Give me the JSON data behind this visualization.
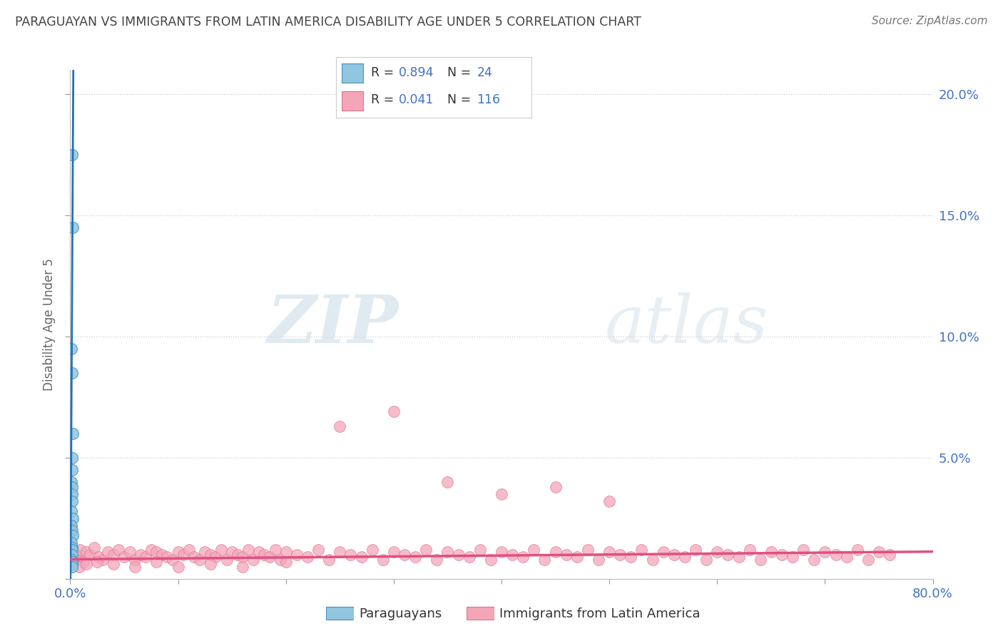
{
  "title": "PARAGUAYAN VS IMMIGRANTS FROM LATIN AMERICA DISABILITY AGE UNDER 5 CORRELATION CHART",
  "source": "Source: ZipAtlas.com",
  "ylabel": "Disability Age Under 5",
  "xlim": [
    0.0,
    0.8
  ],
  "ylim": [
    0.0,
    0.21
  ],
  "ytick_positions": [
    0.0,
    0.05,
    0.1,
    0.15,
    0.2
  ],
  "ytick_labels": [
    "",
    "5.0%",
    "10.0%",
    "15.0%",
    "20.0%"
  ],
  "xtick_positions": [
    0.0,
    0.1,
    0.2,
    0.3,
    0.4,
    0.5,
    0.6,
    0.7,
    0.8
  ],
  "xtick_labels": [
    "0.0%",
    "",
    "",
    "",
    "",
    "",
    "",
    "",
    "80.0%"
  ],
  "blue_R": 0.894,
  "blue_N": 24,
  "pink_R": 0.041,
  "pink_N": 116,
  "blue_color": "#92c5de",
  "pink_color": "#f4a6b8",
  "blue_line_color": "#2171b5",
  "pink_line_color": "#e05080",
  "blue_edge_color": "#4393c3",
  "pink_edge_color": "#e07090",
  "legend_label_blue": "Paraguayans",
  "legend_label_pink": "Immigrants from Latin America",
  "watermark_zip": "ZIP",
  "watermark_atlas": "atlas",
  "background_color": "#ffffff",
  "title_color": "#444444",
  "axis_label_color": "#4472c4",
  "blue_scatter_x": [
    0.0015,
    0.0022,
    0.0012,
    0.0018,
    0.0025,
    0.002,
    0.0016,
    0.001,
    0.0014,
    0.0019,
    0.0017,
    0.0013,
    0.0021,
    0.0011,
    0.0016,
    0.0023,
    0.0009,
    0.0015,
    0.002,
    0.0018,
    0.0012,
    0.0017,
    0.0014,
    0.0019
  ],
  "blue_scatter_y": [
    0.175,
    0.145,
    0.095,
    0.085,
    0.06,
    0.05,
    0.045,
    0.04,
    0.038,
    0.035,
    0.032,
    0.028,
    0.025,
    0.022,
    0.02,
    0.018,
    0.015,
    0.013,
    0.012,
    0.01,
    0.008,
    0.007,
    0.006,
    0.005
  ],
  "pink_scatter_x": [
    0.003,
    0.005,
    0.007,
    0.009,
    0.012,
    0.015,
    0.018,
    0.022,
    0.026,
    0.03,
    0.035,
    0.04,
    0.045,
    0.05,
    0.055,
    0.06,
    0.065,
    0.07,
    0.075,
    0.08,
    0.085,
    0.09,
    0.095,
    0.1,
    0.105,
    0.11,
    0.115,
    0.12,
    0.125,
    0.13,
    0.135,
    0.14,
    0.145,
    0.15,
    0.155,
    0.16,
    0.165,
    0.17,
    0.175,
    0.18,
    0.185,
    0.19,
    0.195,
    0.2,
    0.21,
    0.22,
    0.23,
    0.24,
    0.25,
    0.26,
    0.27,
    0.28,
    0.29,
    0.3,
    0.31,
    0.32,
    0.33,
    0.34,
    0.35,
    0.36,
    0.37,
    0.38,
    0.39,
    0.4,
    0.41,
    0.42,
    0.43,
    0.44,
    0.45,
    0.46,
    0.47,
    0.48,
    0.49,
    0.5,
    0.51,
    0.52,
    0.53,
    0.54,
    0.55,
    0.56,
    0.57,
    0.58,
    0.59,
    0.6,
    0.61,
    0.62,
    0.63,
    0.64,
    0.65,
    0.66,
    0.67,
    0.68,
    0.69,
    0.7,
    0.71,
    0.72,
    0.73,
    0.74,
    0.75,
    0.76,
    0.008,
    0.015,
    0.025,
    0.04,
    0.06,
    0.08,
    0.1,
    0.13,
    0.16,
    0.2,
    0.25,
    0.3,
    0.35,
    0.4,
    0.45,
    0.5
  ],
  "pink_scatter_y": [
    0.008,
    0.01,
    0.009,
    0.012,
    0.007,
    0.011,
    0.01,
    0.013,
    0.009,
    0.008,
    0.011,
    0.01,
    0.012,
    0.009,
    0.011,
    0.008,
    0.01,
    0.009,
    0.012,
    0.011,
    0.01,
    0.009,
    0.008,
    0.011,
    0.01,
    0.012,
    0.009,
    0.008,
    0.011,
    0.01,
    0.009,
    0.012,
    0.008,
    0.011,
    0.01,
    0.009,
    0.012,
    0.008,
    0.011,
    0.01,
    0.009,
    0.012,
    0.008,
    0.011,
    0.01,
    0.009,
    0.012,
    0.008,
    0.011,
    0.01,
    0.009,
    0.012,
    0.008,
    0.011,
    0.01,
    0.009,
    0.012,
    0.008,
    0.011,
    0.01,
    0.009,
    0.012,
    0.008,
    0.011,
    0.01,
    0.009,
    0.012,
    0.008,
    0.011,
    0.01,
    0.009,
    0.012,
    0.008,
    0.011,
    0.01,
    0.009,
    0.012,
    0.008,
    0.011,
    0.01,
    0.009,
    0.012,
    0.008,
    0.011,
    0.01,
    0.009,
    0.012,
    0.008,
    0.011,
    0.01,
    0.009,
    0.012,
    0.008,
    0.011,
    0.01,
    0.009,
    0.012,
    0.008,
    0.011,
    0.01,
    0.005,
    0.006,
    0.007,
    0.006,
    0.005,
    0.007,
    0.005,
    0.006,
    0.005,
    0.007,
    0.063,
    0.069,
    0.04,
    0.035,
    0.038,
    0.032
  ]
}
